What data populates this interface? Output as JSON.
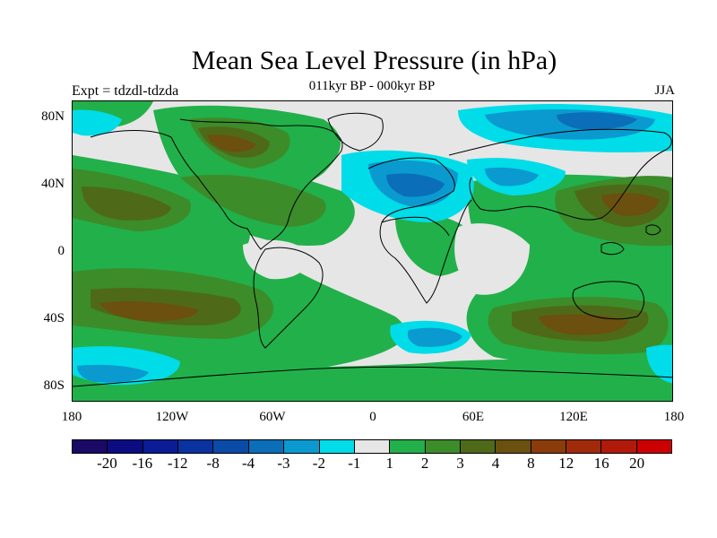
{
  "title": "Mean Sea Level Pressure (in hPa)",
  "subtitle": "011kyr BP - 000kyr BP",
  "experiment": "Expt = tdzdl-tdzda",
  "season": "JJA",
  "axes": {
    "y_ticks": [
      "80N",
      "40N",
      "0",
      "40S",
      "80S"
    ],
    "x_ticks": [
      "180",
      "120W",
      "60W",
      "0",
      "60E",
      "120E",
      "180"
    ]
  },
  "colorbar": {
    "colors": [
      "#1a0a66",
      "#0c0c82",
      "#0a1c96",
      "#0a32a0",
      "#0a4ba8",
      "#0a6eb8",
      "#0a9ad0",
      "#00dce8",
      "#e6e6e6",
      "#22b04a",
      "#3c8c2a",
      "#4e6a18",
      "#6b5010",
      "#8a3c0a",
      "#a02a0a",
      "#b01a0a",
      "#cc0000"
    ],
    "labels": [
      "-20",
      "-16",
      "-12",
      "-8",
      "-4",
      "-3",
      "-2",
      "-1",
      "1",
      "2",
      "3",
      "4",
      "8",
      "12",
      "16",
      "20"
    ]
  }
}
